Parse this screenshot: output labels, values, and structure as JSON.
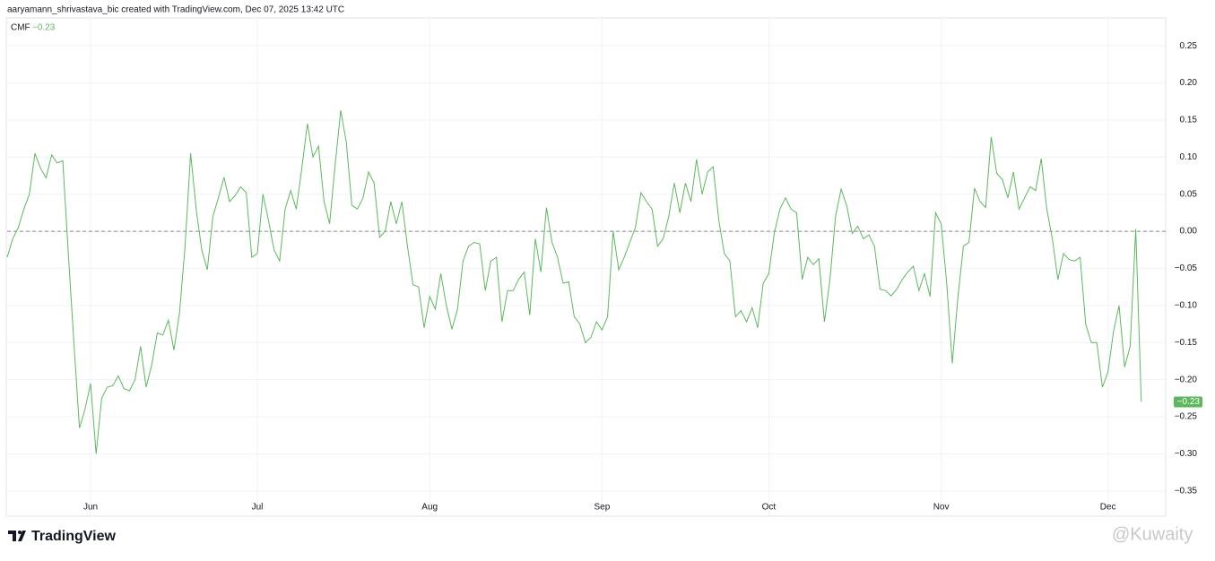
{
  "header": "aaryamann_shrivastava_bic created with TradingView.com, Dec 07, 2025 13:42 UTC",
  "brand": "TradingView",
  "watermark": "@Kuwaity",
  "chart_data": {
    "type": "line",
    "series": [
      {
        "name": "CMF",
        "color": "#5cb85c",
        "last_label": "−0.23",
        "values": [
          -0.035,
          -0.01,
          0.005,
          0.03,
          0.05,
          0.105,
          0.085,
          0.072,
          0.103,
          0.092,
          0.095,
          -0.03,
          -0.15,
          -0.265,
          -0.24,
          -0.205,
          -0.3,
          -0.225,
          -0.21,
          -0.208,
          -0.195,
          -0.212,
          -0.215,
          -0.2,
          -0.155,
          -0.21,
          -0.18,
          -0.137,
          -0.14,
          -0.12,
          -0.16,
          -0.11,
          -0.02,
          0.105,
          0.03,
          -0.025,
          -0.052,
          0.02,
          0.045,
          0.073,
          0.04,
          0.048,
          0.06,
          0.052,
          -0.035,
          -0.03,
          0.05,
          0.015,
          -0.025,
          -0.04,
          0.03,
          0.055,
          0.03,
          0.085,
          0.145,
          0.1,
          0.115,
          0.04,
          0.01,
          0.09,
          0.163,
          0.12,
          0.035,
          0.03,
          0.045,
          0.08,
          0.065,
          -0.008,
          0.0,
          0.04,
          0.01,
          0.04,
          -0.02,
          -0.072,
          -0.075,
          -0.13,
          -0.088,
          -0.105,
          -0.057,
          -0.1,
          -0.132,
          -0.105,
          -0.04,
          -0.02,
          -0.015,
          -0.017,
          -0.08,
          -0.04,
          -0.035,
          -0.122,
          -0.08,
          -0.08,
          -0.065,
          -0.055,
          -0.113,
          -0.01,
          -0.055,
          0.032,
          -0.015,
          -0.035,
          -0.07,
          -0.068,
          -0.115,
          -0.125,
          -0.15,
          -0.143,
          -0.122,
          -0.133,
          -0.115,
          0.0,
          -0.052,
          -0.035,
          -0.015,
          0.005,
          0.052,
          0.04,
          0.03,
          -0.02,
          -0.01,
          0.02,
          0.065,
          0.025,
          0.065,
          0.04,
          0.097,
          0.05,
          0.08,
          0.087,
          0.015,
          -0.03,
          -0.04,
          -0.115,
          -0.107,
          -0.122,
          -0.103,
          -0.13,
          -0.07,
          -0.057,
          -0.002,
          0.03,
          0.045,
          0.03,
          0.025,
          -0.065,
          -0.035,
          -0.045,
          -0.037,
          -0.122,
          -0.065,
          0.02,
          0.057,
          0.035,
          -0.003,
          0.007,
          -0.01,
          -0.005,
          -0.02,
          -0.078,
          -0.08,
          -0.087,
          -0.078,
          -0.065,
          -0.055,
          -0.047,
          -0.08,
          -0.057,
          -0.088,
          0.025,
          0.01,
          -0.07,
          -0.178,
          -0.09,
          -0.02,
          -0.015,
          0.058,
          0.04,
          0.032,
          0.127,
          0.078,
          0.07,
          0.045,
          0.08,
          0.03,
          0.045,
          0.06,
          0.055,
          0.098,
          0.03,
          -0.01,
          -0.065,
          -0.03,
          -0.038,
          -0.04,
          -0.035,
          -0.125,
          -0.15,
          -0.15,
          -0.21,
          -0.19,
          -0.135,
          -0.1,
          -0.183,
          -0.155,
          0.003,
          -0.23
        ]
      }
    ],
    "categories": [
      null,
      null,
      null,
      null,
      null,
      null,
      null,
      null,
      null,
      null,
      null,
      null,
      null,
      null,
      null,
      "Jun",
      null,
      null,
      null,
      null,
      null,
      null,
      null,
      null,
      null,
      null,
      null,
      null,
      null,
      null,
      null,
      null,
      null,
      null,
      null,
      null,
      null,
      null,
      null,
      null,
      null,
      null,
      null,
      null,
      null,
      "Jul",
      null,
      null,
      null,
      null,
      null,
      null,
      null,
      null,
      null,
      null,
      null,
      null,
      null,
      null,
      null,
      null,
      null,
      null,
      null,
      null,
      null,
      null,
      null,
      null,
      null,
      null,
      null,
      null,
      null,
      null,
      "Aug",
      null,
      null,
      null,
      null,
      null,
      null,
      null,
      null,
      null,
      null,
      null,
      null,
      null,
      null,
      null,
      null,
      null,
      null,
      null,
      null,
      null,
      null,
      null,
      null,
      null,
      null,
      null,
      null,
      null,
      null,
      "Sep",
      null,
      null,
      null,
      null,
      null,
      null,
      null,
      null,
      null,
      null,
      null,
      null,
      null,
      null,
      null,
      null,
      null,
      null,
      null,
      null,
      null,
      null,
      null,
      null,
      null,
      null,
      null,
      null,
      null,
      "Oct",
      null,
      null,
      null,
      null,
      null,
      null,
      null,
      null,
      null,
      null,
      null,
      null,
      null,
      null,
      null,
      null,
      null,
      null,
      null,
      null,
      null,
      null,
      null,
      null,
      null,
      null,
      null,
      null,
      null,
      null,
      "Nov",
      null,
      null,
      null,
      null,
      null,
      null,
      null,
      null,
      null,
      null,
      null,
      null,
      null,
      null,
      null,
      null,
      null,
      null,
      null,
      null,
      null,
      null,
      null,
      null,
      null,
      null,
      null,
      null,
      null,
      "Dec",
      null,
      null,
      null,
      null,
      null,
      null
    ],
    "ylim": [
      -0.355,
      0.29
    ],
    "yticks": [
      0.25,
      {
        "value": 0.2,
        "label": "0.20"
      },
      0.15,
      {
        "value": 0.1,
        "label": "0.10"
      },
      0.05,
      {
        "value": 0,
        "label": "0.00"
      },
      {
        "value": -0.05,
        "label": "−0.05"
      },
      {
        "value": -0.1,
        "label": "−0.10"
      },
      {
        "value": -0.15,
        "label": "−0.15"
      },
      {
        "value": -0.2,
        "label": "−0.20"
      },
      {
        "value": -0.25,
        "label": "−0.25"
      },
      {
        "value": -0.3,
        "label": "−0.30"
      },
      {
        "value": -0.35,
        "label": "−0.35"
      }
    ],
    "grid": true,
    "zero_line": true
  }
}
